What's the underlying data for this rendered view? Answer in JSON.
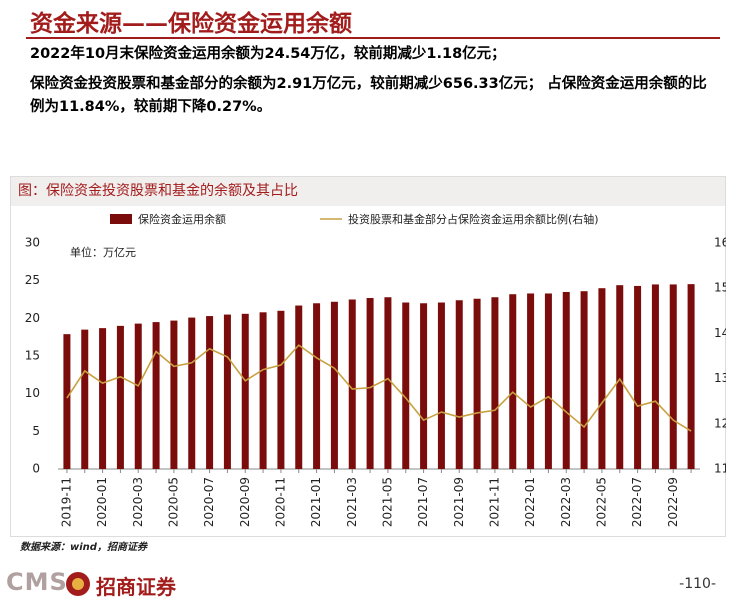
{
  "header": {
    "title": "资金来源——保险资金运用余额"
  },
  "summary": [
    "2022年10月末保险资金运用余额为24.54万亿，较前期减少1.18亿元；",
    "保险资金投资股票和基金部分的余额为2.91万亿元，较前期减少656.33亿元； 占保险资金运用余额的比例为11.84%，较前期下降0.27%。"
  ],
  "chart_data": {
    "type": "bar",
    "title": "图：保险资金投资股票和基金的余额及其占比",
    "unit_note": "单位：万亿元",
    "categories": [
      "2019-11",
      null,
      "2020-01",
      null,
      "2020-03",
      null,
      "2020-05",
      null,
      "2020-07",
      null,
      "2020-09",
      null,
      "2020-11",
      null,
      "2021-01",
      null,
      "2021-03",
      null,
      "2021-05",
      null,
      "2021-07",
      null,
      "2021-09",
      null,
      "2021-11",
      null,
      "2022-01",
      null,
      "2022-03",
      null,
      "2022-05",
      null,
      "2022-07",
      null,
      "2022-09",
      null
    ],
    "series": [
      {
        "name": "保险资金运用余额",
        "type": "bar",
        "color": "#7b0c0c",
        "values": [
          17.9,
          18.5,
          18.7,
          19.0,
          19.3,
          19.5,
          19.7,
          20.1,
          20.3,
          20.5,
          20.6,
          20.8,
          21.0,
          21.7,
          22.0,
          22.2,
          22.5,
          22.7,
          22.8,
          22.1,
          22.0,
          22.1,
          22.4,
          22.6,
          22.8,
          23.2,
          23.3,
          23.3,
          23.5,
          23.6,
          24.0,
          24.4,
          24.3,
          24.5,
          24.5,
          24.54
        ]
      },
      {
        "name": "投资股票和基金部分占保险资金运用余额比例(右轴)",
        "type": "line",
        "axis": "y2",
        "color": "#c8a040",
        "values": [
          12.57,
          13.17,
          12.9,
          13.04,
          12.84,
          13.6,
          13.27,
          13.35,
          13.66,
          13.48,
          12.95,
          13.2,
          13.3,
          13.74,
          13.46,
          13.23,
          12.77,
          12.8,
          13.0,
          12.57,
          12.08,
          12.26,
          12.15,
          12.24,
          12.3,
          12.7,
          12.37,
          12.6,
          12.26,
          11.93,
          12.46,
          12.99,
          12.39,
          12.5,
          12.08,
          11.84
        ]
      }
    ],
    "ylim": [
      0,
      30
    ],
    "yticks": [
      0,
      5,
      10,
      15,
      20,
      25,
      30
    ],
    "y2lim": [
      11,
      16
    ],
    "y2ticks": [
      11,
      12,
      13,
      14,
      15,
      16
    ],
    "grid": false
  },
  "source": "数据来源：wind，招商证券",
  "footer": {
    "brand_en": "CMS",
    "brand_cn": "招商证券",
    "page": "-110-"
  }
}
